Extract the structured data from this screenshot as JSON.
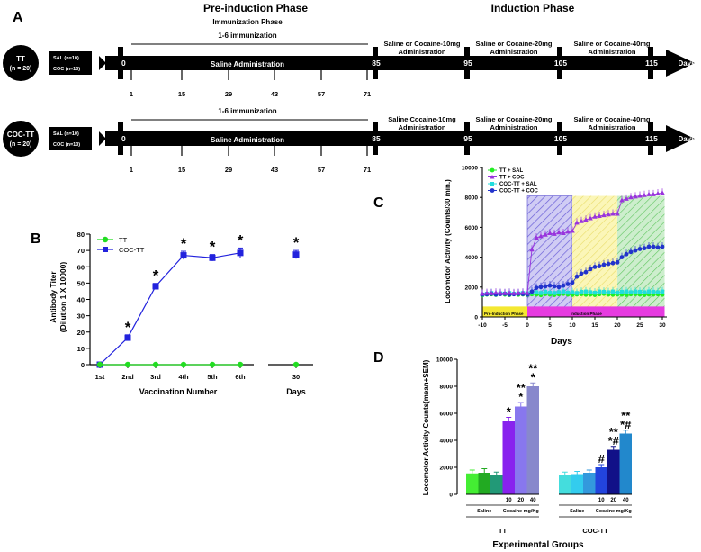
{
  "panel_a": {
    "label": "A",
    "pre_phase": "Pre-induction Phase",
    "induction_phase": "Induction Phase",
    "immunization_phase": "Immunization Phase",
    "imm_range": "1-6 immunization",
    "saline_admin": "Saline Administration",
    "days": "Days",
    "row1": {
      "circle_line1": "TT",
      "circle_line2": "(n = 20)",
      "group1": "SAL (n=10)",
      "group2": "COC (n=10)",
      "seg1_line1": "Saline or Cocaine-10mg",
      "seg1_line2": "Administration",
      "seg2_line1": "Saline or Cocaine-20mg",
      "seg2_line2": "Administration",
      "seg3_line1": "Saline or Cocaine-40mg",
      "seg3_line2": "Administration"
    },
    "row2": {
      "circle_line1": "COC-TT",
      "circle_line2": "(n = 20)",
      "group1": "SAL (n=10)",
      "group2": "COC (n=10)",
      "seg1_line1": "Saline Cocaine-10mg",
      "seg1_line2": "Administration",
      "seg2_line1": "Saline or Cocaine-20mg",
      "seg2_line2": "Administration",
      "seg3_line1": "Saline or Cocaine-40mg",
      "seg3_line2": "Administration"
    },
    "milestones": [
      "0",
      "85",
      "95",
      "105",
      "115"
    ],
    "immunization_days": [
      "1",
      "15",
      "29",
      "43",
      "57",
      "71"
    ]
  },
  "chart_data": [
    {
      "panel": "B",
      "type": "line",
      "xlabel": "Vaccination Number",
      "xlabel2": "Days",
      "ylabel": "Antibody Titer",
      "ylabel2": "(Dilution 1 X 10000)",
      "categories": [
        "1st",
        "2nd",
        "3rd",
        "4th",
        "5th",
        "6th",
        "30"
      ],
      "ylim": [
        0,
        80
      ],
      "yticks": [
        "0",
        "10",
        "20",
        "30",
        "40",
        "50",
        "60",
        "70",
        "80"
      ],
      "series": [
        {
          "name": "TT",
          "color": "#22dd22",
          "values": [
            0,
            0,
            0,
            0,
            0,
            0,
            0
          ]
        },
        {
          "name": "COC-TT",
          "color": "#2222dd",
          "values": [
            0,
            16.5,
            48,
            67,
            65.5,
            68.5,
            67.5
          ],
          "errors": [
            0,
            1.8,
            1.8,
            2.5,
            2,
            3,
            2.5
          ]
        }
      ],
      "significance": [
        "",
        "*",
        "*",
        "*",
        "*",
        "*",
        "*"
      ]
    },
    {
      "panel": "C",
      "type": "line",
      "xlabel": "Days",
      "ylabel": "Locomotor Activity (Counts/30 min.)",
      "xlim": [
        -10,
        31
      ],
      "ylim": [
        0,
        10000
      ],
      "xticks": [
        "-10",
        "-5",
        "0",
        "5",
        "10",
        "15",
        "20",
        "25",
        "30"
      ],
      "yticks": [
        "0",
        "2000",
        "4000",
        "6000",
        "8000",
        "10000"
      ],
      "pre_phase_label": "Pre-Induction Phase",
      "induction_label": "Induction Phase",
      "series": [
        {
          "name": "TT + SAL",
          "color": "#22ee22",
          "values": [
            1450,
            1500,
            1520,
            1480,
            1550,
            1500,
            1470,
            1530,
            1490,
            1510,
            1480,
            1520,
            1500,
            1460,
            1540,
            1500,
            1470,
            1520,
            1550,
            1500,
            1480,
            1510,
            1530,
            1490,
            1500,
            1470,
            1520,
            1550,
            1500,
            1490,
            1510,
            1500,
            1480,
            1520,
            1530,
            1500,
            1470,
            1510,
            1500,
            1520,
            1490
          ]
        },
        {
          "name": "TT + COC",
          "color": "#9933dd",
          "values": [
            1550,
            1600,
            1580,
            1620,
            1600,
            1590,
            1610,
            1580,
            1600,
            1620,
            1600,
            4500,
            5300,
            5400,
            5500,
            5600,
            5550,
            5650,
            5600,
            5700,
            5750,
            6300,
            6400,
            6500,
            6600,
            6700,
            6750,
            6800,
            6850,
            6900,
            6900,
            7800,
            7900,
            8000,
            8050,
            8100,
            8150,
            8200,
            8200,
            8250,
            8300
          ]
        },
        {
          "name": "COC-TT + SAL",
          "color": "#22dddd",
          "values": [
            1500,
            1550,
            1600,
            1520,
            1580,
            1560,
            1600,
            1550,
            1570,
            1600,
            1580,
            1620,
            1650,
            1600,
            1680,
            1620,
            1600,
            1650,
            1700,
            1620,
            1650,
            1600,
            1680,
            1700,
            1650,
            1620,
            1700,
            1680,
            1650,
            1700,
            1620,
            1680,
            1700,
            1650,
            1700,
            1680,
            1650,
            1700,
            1680,
            1650,
            1700
          ]
        },
        {
          "name": "COC-TT + COC",
          "color": "#2233cc",
          "values": [
            1500,
            1520,
            1550,
            1500,
            1530,
            1550,
            1500,
            1520,
            1550,
            1530,
            1500,
            1700,
            1950,
            2000,
            2050,
            2100,
            2050,
            2000,
            2100,
            2200,
            2300,
            2700,
            2900,
            3000,
            3200,
            3350,
            3400,
            3500,
            3550,
            3600,
            3650,
            4000,
            4200,
            4350,
            4450,
            4550,
            4600,
            4700,
            4700,
            4650,
            4700
          ]
        }
      ]
    },
    {
      "panel": "D",
      "type": "bar",
      "xlabel": "Experimental Groups",
      "ylabel": "Locomotor Activity Counts(mean+SEM)",
      "ylim": [
        0,
        10000
      ],
      "yticks": [
        "0",
        "2000",
        "4000",
        "6000",
        "8000",
        "10000"
      ],
      "groups": [
        {
          "name": "TT",
          "saline_label": "Saline",
          "cocaine_label": "Cocaine mg/Kg",
          "bars": [
            {
              "label": "",
              "value": 1550,
              "error": 250,
              "color": "#44ee33",
              "sig": ""
            },
            {
              "label": "",
              "value": 1600,
              "error": 300,
              "color": "#22aa22",
              "sig": ""
            },
            {
              "label": "",
              "value": 1450,
              "error": 200,
              "color": "#229977",
              "sig": ""
            },
            {
              "label": "10",
              "value": 5400,
              "error": 300,
              "color": "#8822ee",
              "sig": "*"
            },
            {
              "label": "20",
              "value": 6500,
              "error": 300,
              "color": "#8877ee",
              "sig": "**|*"
            },
            {
              "label": "40",
              "value": 8000,
              "error": 250,
              "color": "#8888cc",
              "sig": "**|*"
            }
          ]
        },
        {
          "name": "COC-TT",
          "saline_label": "Saline",
          "cocaine_label": "Cocaine mg/Kg",
          "bars": [
            {
              "label": "",
              "value": 1450,
              "error": 200,
              "color": "#44dddd",
              "sig": ""
            },
            {
              "label": "",
              "value": 1500,
              "error": 200,
              "color": "#33ccee",
              "sig": ""
            },
            {
              "label": "",
              "value": 1600,
              "error": 200,
              "color": "#3399dd",
              "sig": ""
            },
            {
              "label": "10",
              "value": 2000,
              "error": 200,
              "color": "#2244dd",
              "sig": "#"
            },
            {
              "label": "20",
              "value": 3300,
              "error": 250,
              "color": "#111188",
              "sig": "**|*#"
            },
            {
              "label": "40",
              "value": 4500,
              "error": 250,
              "color": "#2288cc",
              "sig": "**|*#"
            }
          ]
        }
      ]
    }
  ]
}
